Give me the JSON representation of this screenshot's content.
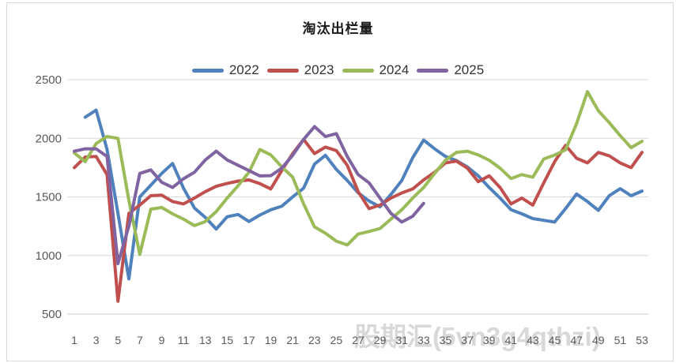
{
  "watermark": {
    "text": "股期汇(5vn3g4qthzi)"
  },
  "axes": {
    "y_ticks": [
      500,
      1000,
      1500,
      2000,
      2500
    ],
    "x_ticks": [
      1,
      3,
      5,
      7,
      9,
      11,
      13,
      15,
      17,
      19,
      21,
      23,
      25,
      27,
      29,
      31,
      33,
      35,
      37,
      39,
      41,
      43,
      45,
      47,
      49,
      51,
      53
    ]
  },
  "chart_data": {
    "type": "line",
    "title": "淘汰出栏量",
    "xlabel": "",
    "ylabel": "",
    "ylim": [
      500,
      2500
    ],
    "xlim": [
      1,
      53
    ],
    "grid": true,
    "legend_position": "top",
    "x": [
      1,
      2,
      3,
      4,
      5,
      6,
      7,
      8,
      9,
      10,
      11,
      12,
      13,
      14,
      15,
      16,
      17,
      18,
      19,
      20,
      21,
      22,
      23,
      24,
      25,
      26,
      27,
      28,
      29,
      30,
      31,
      32,
      33,
      34,
      35,
      36,
      37,
      38,
      39,
      40,
      41,
      42,
      43,
      44,
      45,
      46,
      47,
      48,
      49,
      50,
      51,
      52,
      53
    ],
    "series": [
      {
        "name": "2022",
        "color": "#4F81BD",
        "values": [
          null,
          2180,
          2240,
          1905,
          1360,
          800,
          1500,
          1600,
          1700,
          1785,
          1575,
          1405,
          1325,
          1225,
          1330,
          1350,
          1290,
          1345,
          1390,
          1420,
          1500,
          1575,
          1780,
          1855,
          1735,
          1640,
          1535,
          1465,
          1415,
          1520,
          1640,
          1835,
          1985,
          1910,
          1845,
          1810,
          1755,
          1680,
          1580,
          1490,
          1390,
          1355,
          1315,
          1300,
          1285,
          1400,
          1525,
          1460,
          1385,
          1510,
          1570,
          1510,
          1550
        ]
      },
      {
        "name": "2023",
        "color": "#C0504D",
        "values": [
          1750,
          1840,
          1845,
          1690,
          610,
          1360,
          1430,
          1510,
          1515,
          1460,
          1440,
          1490,
          1545,
          1590,
          1615,
          1635,
          1645,
          1613,
          1568,
          1724,
          1870,
          1990,
          1870,
          1925,
          1895,
          1770,
          1545,
          1400,
          1430,
          1490,
          1534,
          1568,
          1645,
          1710,
          1790,
          1805,
          1745,
          1630,
          1680,
          1580,
          1440,
          1490,
          1430,
          1620,
          1800,
          1940,
          1830,
          1790,
          1880,
          1850,
          1790,
          1750,
          1880
        ]
      },
      {
        "name": "2024",
        "color": "#9BBB59",
        "values": [
          1875,
          1800,
          1955,
          2015,
          2000,
          1470,
          1010,
          1395,
          1410,
          1355,
          1310,
          1255,
          1290,
          1375,
          1490,
          1595,
          1710,
          1905,
          1858,
          1757,
          1668,
          1440,
          1244,
          1190,
          1122,
          1090,
          1183,
          1205,
          1230,
          1310,
          1390,
          1490,
          1580,
          1700,
          1813,
          1880,
          1890,
          1858,
          1813,
          1745,
          1657,
          1690,
          1668,
          1823,
          1857,
          1902,
          2124,
          2398,
          2235,
          2134,
          2023,
          1920,
          1975
        ]
      },
      {
        "name": "2025",
        "color": "#8064A2",
        "values": [
          1890,
          1910,
          1910,
          1845,
          930,
          1250,
          1700,
          1730,
          1625,
          1580,
          1655,
          1710,
          1815,
          1890,
          1815,
          1770,
          1724,
          1679,
          1681,
          1745,
          1855,
          1990,
          2100,
          2015,
          2040,
          1845,
          1690,
          1620,
          1490,
          1360,
          1285,
          1335,
          1445,
          null,
          null,
          null,
          null,
          null,
          null,
          null,
          null,
          null,
          null,
          null,
          null,
          null,
          null,
          null,
          null,
          null,
          null,
          null,
          null
        ]
      }
    ]
  }
}
